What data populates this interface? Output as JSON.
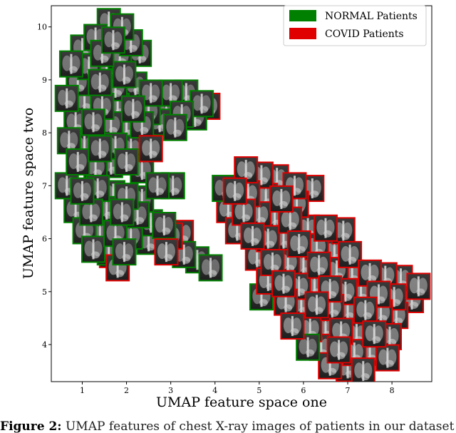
{
  "chart_data": {
    "type": "scatter",
    "title": "",
    "xlabel": "UMAP feature space one",
    "ylabel": "UMAP feature space two",
    "xlim": [
      0.3,
      8.9
    ],
    "ylim": [
      3.3,
      10.4
    ],
    "xticks": [
      1,
      2,
      3,
      4,
      5,
      6,
      7,
      8
    ],
    "yticks": [
      4,
      5,
      6,
      7,
      8,
      9,
      10
    ],
    "grid": false,
    "legend_position": "top-right",
    "marker": "chest-x-ray-thumbnail",
    "series": [
      {
        "name": "NORMAL Patients",
        "color": "#008000",
        "points": [
          [
            1.6,
            10.1
          ],
          [
            1.9,
            10.0
          ],
          [
            1.3,
            9.8
          ],
          [
            1.7,
            9.75
          ],
          [
            2.1,
            9.7
          ],
          [
            1.0,
            9.6
          ],
          [
            1.45,
            9.5
          ],
          [
            1.85,
            9.45
          ],
          [
            2.3,
            9.5
          ],
          [
            0.75,
            9.3
          ],
          [
            1.15,
            9.25
          ],
          [
            1.55,
            9.2
          ],
          [
            1.95,
            9.1
          ],
          [
            0.9,
            8.95
          ],
          [
            1.4,
            8.95
          ],
          [
            1.75,
            8.85
          ],
          [
            2.2,
            8.9
          ],
          [
            2.55,
            8.75
          ],
          [
            3.0,
            8.75
          ],
          [
            3.35,
            8.75
          ],
          [
            3.7,
            8.55
          ],
          [
            0.65,
            8.65
          ],
          [
            1.05,
            8.6
          ],
          [
            1.45,
            8.5
          ],
          [
            1.8,
            8.5
          ],
          [
            2.15,
            8.45
          ],
          [
            2.5,
            8.4
          ],
          [
            2.9,
            8.35
          ],
          [
            3.25,
            8.35
          ],
          [
            3.55,
            8.3
          ],
          [
            0.85,
            8.2
          ],
          [
            1.25,
            8.2
          ],
          [
            1.65,
            8.15
          ],
          [
            2.0,
            8.1
          ],
          [
            2.35,
            8.15
          ],
          [
            2.75,
            8.2
          ],
          [
            3.1,
            8.1
          ],
          [
            0.7,
            7.85
          ],
          [
            1.05,
            7.75
          ],
          [
            1.4,
            7.7
          ],
          [
            1.75,
            7.75
          ],
          [
            2.1,
            7.7
          ],
          [
            0.9,
            7.45
          ],
          [
            1.3,
            7.35
          ],
          [
            1.65,
            7.4
          ],
          [
            2.0,
            7.45
          ],
          [
            2.35,
            7.3
          ],
          [
            2.7,
            7.0
          ],
          [
            3.05,
            7.0
          ],
          [
            0.65,
            7.0
          ],
          [
            1.0,
            6.9
          ],
          [
            1.35,
            6.95
          ],
          [
            1.7,
            6.85
          ],
          [
            2.0,
            6.8
          ],
          [
            2.35,
            6.75
          ],
          [
            0.85,
            6.55
          ],
          [
            1.2,
            6.5
          ],
          [
            1.55,
            6.55
          ],
          [
            1.9,
            6.5
          ],
          [
            2.25,
            6.45
          ],
          [
            2.55,
            6.3
          ],
          [
            2.85,
            6.25
          ],
          [
            1.05,
            6.15
          ],
          [
            1.4,
            6.1
          ],
          [
            1.75,
            6.1
          ],
          [
            2.1,
            6.05
          ],
          [
            2.5,
            5.95
          ],
          [
            1.25,
            5.8
          ],
          [
            1.6,
            5.75
          ],
          [
            1.95,
            5.75
          ],
          [
            3.3,
            5.7
          ],
          [
            3.6,
            5.6
          ],
          [
            3.9,
            5.45
          ],
          [
            4.2,
            6.95
          ],
          [
            5.05,
            4.9
          ],
          [
            6.1,
            3.95
          ]
        ]
      },
      {
        "name": "COVID Patients",
        "color": "#e00000",
        "points": [
          [
            3.85,
            8.5
          ],
          [
            2.55,
            7.7
          ],
          [
            3.0,
            6.05
          ],
          [
            3.25,
            6.1
          ],
          [
            2.9,
            5.75
          ],
          [
            1.8,
            5.45
          ],
          [
            1.65,
            5.7
          ],
          [
            4.7,
            7.3
          ],
          [
            5.05,
            7.2
          ],
          [
            5.4,
            7.15
          ],
          [
            5.8,
            7.0
          ],
          [
            6.2,
            6.95
          ],
          [
            4.45,
            6.9
          ],
          [
            4.75,
            6.85
          ],
          [
            5.15,
            6.8
          ],
          [
            5.5,
            6.75
          ],
          [
            5.85,
            6.65
          ],
          [
            4.3,
            6.55
          ],
          [
            4.65,
            6.5
          ],
          [
            5.0,
            6.45
          ],
          [
            5.35,
            6.4
          ],
          [
            5.7,
            6.35
          ],
          [
            6.1,
            6.2
          ],
          [
            6.5,
            6.2
          ],
          [
            6.9,
            6.15
          ],
          [
            4.5,
            6.15
          ],
          [
            4.85,
            6.05
          ],
          [
            5.2,
            6.0
          ],
          [
            5.55,
            6.0
          ],
          [
            5.9,
            5.9
          ],
          [
            6.3,
            5.85
          ],
          [
            6.7,
            5.75
          ],
          [
            7.05,
            5.7
          ],
          [
            4.95,
            5.65
          ],
          [
            5.3,
            5.55
          ],
          [
            5.65,
            5.55
          ],
          [
            6.0,
            5.5
          ],
          [
            6.35,
            5.5
          ],
          [
            6.75,
            5.4
          ],
          [
            7.1,
            5.35
          ],
          [
            7.5,
            5.35
          ],
          [
            7.85,
            5.3
          ],
          [
            8.2,
            5.25
          ],
          [
            8.6,
            5.1
          ],
          [
            5.2,
            5.2
          ],
          [
            5.55,
            5.15
          ],
          [
            5.9,
            5.1
          ],
          [
            6.25,
            5.1
          ],
          [
            6.6,
            5.05
          ],
          [
            6.95,
            5.0
          ],
          [
            7.3,
            5.0
          ],
          [
            7.7,
            4.95
          ],
          [
            8.05,
            4.9
          ],
          [
            8.45,
            4.85
          ],
          [
            5.6,
            4.8
          ],
          [
            5.95,
            4.75
          ],
          [
            6.3,
            4.75
          ],
          [
            6.65,
            4.7
          ],
          [
            7.0,
            4.65
          ],
          [
            7.4,
            4.65
          ],
          [
            7.75,
            4.6
          ],
          [
            8.1,
            4.55
          ],
          [
            5.75,
            4.35
          ],
          [
            6.15,
            4.3
          ],
          [
            6.5,
            4.3
          ],
          [
            6.85,
            4.25
          ],
          [
            7.2,
            4.2
          ],
          [
            7.6,
            4.2
          ],
          [
            7.95,
            4.15
          ],
          [
            6.4,
            3.95
          ],
          [
            6.8,
            3.9
          ],
          [
            7.15,
            3.85
          ],
          [
            7.5,
            3.85
          ],
          [
            7.9,
            3.75
          ],
          [
            6.6,
            3.6
          ],
          [
            7.0,
            3.55
          ],
          [
            7.35,
            3.5
          ]
        ]
      }
    ]
  },
  "caption": {
    "label": "Figure 2:",
    "text": "UMAP features of chest X-ray images of patients in our dataset"
  }
}
